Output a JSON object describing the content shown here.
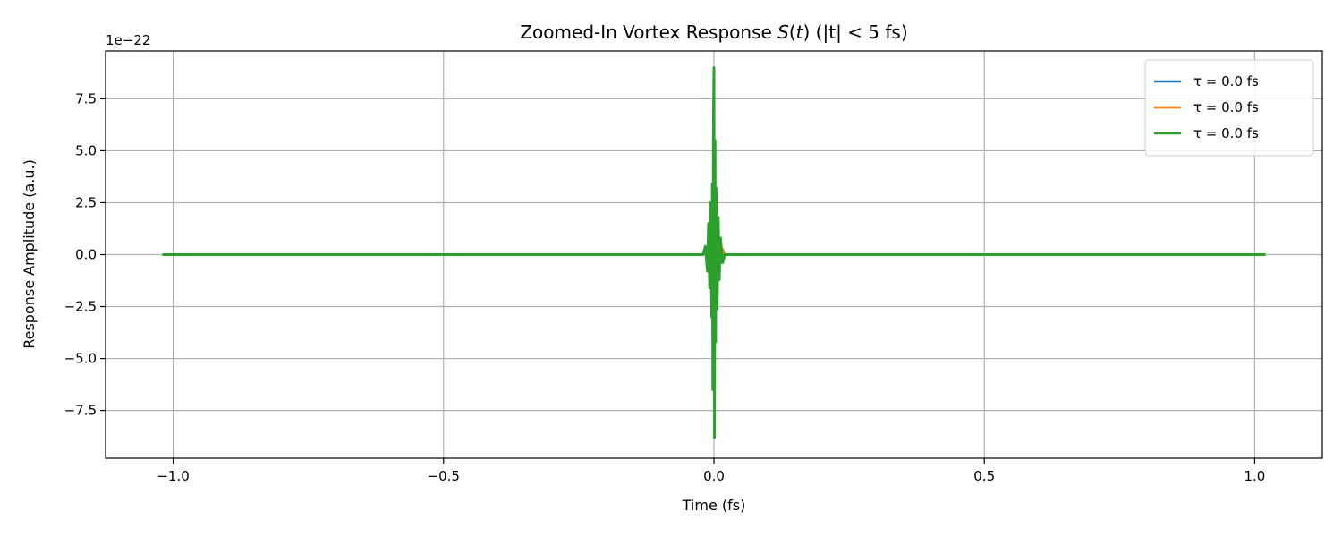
{
  "chart_data": {
    "type": "line",
    "title": "Zoomed-In Vortex Response S(t) (|t| < 5 fs)",
    "title_parts": {
      "before": "Zoomed-In Vortex Response ",
      "math_s": "S",
      "math_open": "(",
      "math_t": "t",
      "math_close": ")",
      "after": " (|t| < 5 fs)"
    },
    "xlabel": "Time (fs)",
    "ylabel": "Response Amplitude (a.u.)",
    "y_offset_label": "1e−22",
    "y_scale_exponent": -22,
    "xlim": [
      -1.125,
      1.125
    ],
    "ylim": [
      -9.8,
      9.8
    ],
    "x_ticks": [
      -1.0,
      -0.5,
      0.0,
      0.5,
      1.0
    ],
    "x_tick_labels": [
      "−1.0",
      "−0.5",
      "0.0",
      "0.5",
      "1.0"
    ],
    "y_ticks": [
      -7.5,
      -5.0,
      -2.5,
      0.0,
      2.5,
      5.0,
      7.5
    ],
    "y_tick_labels": [
      "−7.5",
      "−5.0",
      "−2.5",
      "0.0",
      "2.5",
      "5.0",
      "7.5"
    ],
    "grid": true,
    "legend_position": "upper right",
    "series": [
      {
        "name": "τ = 0.0 fs",
        "color": "#1f77b4",
        "x": [
          -1.02,
          -0.02,
          -0.015,
          -0.01,
          -0.005,
          0.0,
          0.005,
          0.01,
          0.015,
          0.02,
          1.02
        ],
        "y": [
          0,
          0,
          0.2,
          -0.3,
          0.6,
          -0.2,
          0.5,
          -0.3,
          0.2,
          0,
          0
        ]
      },
      {
        "name": "τ = 0.0 fs",
        "color": "#ff7f0e",
        "x": [
          -1.02,
          -0.02,
          -0.015,
          -0.01,
          -0.005,
          0.0,
          0.005,
          0.01,
          0.015,
          0.02,
          1.02
        ],
        "y": [
          0,
          0,
          0.3,
          -0.4,
          0.8,
          -0.5,
          0.7,
          -0.4,
          0.3,
          0,
          0
        ]
      },
      {
        "name": "τ = 0.0 fs",
        "color": "#2ca02c",
        "x": [
          -1.02,
          -0.02,
          -0.016,
          -0.012,
          -0.01,
          -0.008,
          -0.006,
          -0.004,
          -0.003,
          -0.002,
          -0.001,
          0.0,
          0.001,
          0.002,
          0.003,
          0.004,
          0.006,
          0.008,
          0.01,
          0.012,
          0.016,
          0.02,
          1.02
        ],
        "y": [
          0,
          0,
          0.4,
          -0.8,
          1.5,
          -1.6,
          2.5,
          -3.0,
          3.4,
          -6.5,
          6.2,
          9.0,
          -8.8,
          5.5,
          -4.2,
          3.2,
          -2.6,
          1.8,
          -1.2,
          0.8,
          -0.4,
          0,
          0
        ]
      }
    ]
  }
}
